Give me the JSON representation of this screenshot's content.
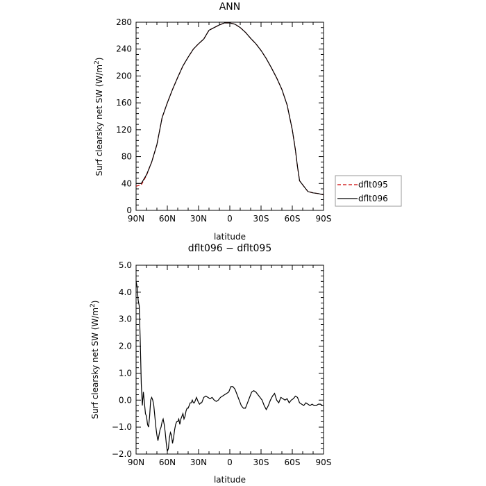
{
  "chart_data": [
    {
      "type": "line",
      "title": "ANN",
      "xlabel": "latitude",
      "ylabel_main": "Surf clearsky net SW (W/m",
      "ylabel_sup": "2",
      "ylabel_close": ")",
      "xlim": [
        90,
        -90
      ],
      "ylim": [
        0,
        280
      ],
      "xticks": [
        90,
        60,
        30,
        0,
        -30,
        -60,
        -90
      ],
      "xtick_labels": [
        "90N",
        "60N",
        "30N",
        "0",
        "30S",
        "60S",
        "90S"
      ],
      "yticks": [
        0,
        40,
        80,
        120,
        160,
        200,
        240,
        280
      ],
      "ytick_labels": [
        "0",
        "40",
        "80",
        "120",
        "160",
        "200",
        "240",
        "280"
      ],
      "x": [
        90,
        85,
        80,
        75,
        70,
        65,
        60,
        55,
        50,
        45,
        40,
        35,
        30,
        25,
        20,
        15,
        10,
        5,
        0,
        -5,
        -10,
        -15,
        -20,
        -25,
        -30,
        -35,
        -40,
        -45,
        -50,
        -55,
        -60,
        -63,
        -65,
        -67,
        -70,
        -72,
        -75,
        -80,
        -85,
        -90
      ],
      "series": [
        {
          "name": "dflt095",
          "color": "#cc0000",
          "dash": true,
          "values": [
            36,
            38,
            52,
            72,
            98,
            138,
            160,
            180,
            198,
            215,
            228,
            240,
            248,
            255,
            268,
            272,
            276,
            279,
            279,
            277,
            272,
            265,
            256,
            248,
            238,
            226,
            212,
            197,
            180,
            157,
            120,
            90,
            65,
            44,
            38,
            34,
            28,
            26,
            25,
            23
          ]
        },
        {
          "name": "dflt096",
          "color": "#000000",
          "dash": false,
          "values": [
            40,
            40,
            53,
            72,
            98,
            138,
            160,
            180,
            198,
            215,
            228,
            240,
            248,
            255,
            268,
            272,
            276,
            279,
            279,
            277,
            272,
            265,
            256,
            248,
            238,
            226,
            212,
            197,
            180,
            157,
            120,
            90,
            65,
            44,
            38,
            34,
            28,
            26,
            25,
            23
          ]
        }
      ]
    },
    {
      "type": "line",
      "title": "dflt096 − dflt095",
      "xlabel": "latitude",
      "ylabel_main": "Surf clearsky net SW (W/m",
      "ylabel_sup": "2",
      "ylabel_close": ")",
      "xlim": [
        90,
        -90
      ],
      "ylim": [
        -2,
        5
      ],
      "xticks": [
        90,
        60,
        30,
        0,
        -30,
        -60,
        -90
      ],
      "xtick_labels": [
        "90N",
        "60N",
        "30N",
        "0",
        "30S",
        "60S",
        "90S"
      ],
      "yticks": [
        -2,
        -1,
        0,
        1,
        2,
        3,
        4,
        5
      ],
      "ytick_labels": [
        "−2.0",
        "−1.0",
        "0.0",
        "1.0",
        "2.0",
        "3.0",
        "4.0",
        "5.0"
      ],
      "x": [
        90,
        89,
        88,
        87,
        86,
        85,
        84,
        83,
        82,
        81,
        80,
        79,
        78,
        77,
        76,
        75,
        74,
        73,
        72,
        71,
        70,
        69,
        68,
        67,
        66,
        65,
        64,
        63,
        62,
        61,
        60,
        59,
        58,
        57,
        56,
        55,
        54,
        53,
        52,
        51,
        50,
        49,
        48,
        47,
        46,
        45,
        44,
        43,
        42,
        41,
        40,
        39,
        38,
        37,
        36,
        35,
        34,
        33,
        32,
        31,
        30,
        29,
        28,
        27,
        26,
        25,
        23,
        21,
        19,
        17,
        15,
        13,
        11,
        9,
        7,
        5,
        3,
        1,
        0,
        -1,
        -3,
        -5,
        -7,
        -9,
        -11,
        -13,
        -15,
        -17,
        -19,
        -21,
        -23,
        -25,
        -27,
        -29,
        -31,
        -33,
        -35,
        -37,
        -39,
        -41,
        -43,
        -45,
        -47,
        -49,
        -51,
        -53,
        -55,
        -57,
        -59,
        -61,
        -63,
        -65,
        -67,
        -69,
        -71,
        -73,
        -75,
        -77,
        -79,
        -81,
        -83,
        -85,
        -87,
        -89,
        -90
      ],
      "series": [
        {
          "name": "dflt096 − dflt095",
          "color": "#000000",
          "dash": false,
          "values": [
            4.4,
            4.2,
            3.7,
            3.5,
            2.2,
            0.6,
            -0.2,
            0.3,
            -0.1,
            -0.5,
            -0.6,
            -0.9,
            -1.0,
            -0.6,
            0.0,
            0.1,
            0.0,
            -0.2,
            -0.6,
            -1.0,
            -1.3,
            -1.5,
            -1.3,
            -1.1,
            -1.0,
            -0.8,
            -0.7,
            -0.9,
            -1.2,
            -1.6,
            -1.9,
            -1.8,
            -1.4,
            -1.2,
            -1.3,
            -1.6,
            -1.4,
            -1.1,
            -0.9,
            -0.8,
            -0.8,
            -0.7,
            -0.9,
            -0.7,
            -0.6,
            -0.5,
            -0.7,
            -0.6,
            -0.4,
            -0.3,
            -0.3,
            -0.2,
            -0.1,
            -0.1,
            0.0,
            -0.1,
            -0.1,
            0.0,
            0.1,
            0.0,
            -0.1,
            -0.15,
            -0.1,
            -0.1,
            0.0,
            0.1,
            0.15,
            0.1,
            0.05,
            0.1,
            0.0,
            -0.05,
            0.0,
            0.1,
            0.15,
            0.2,
            0.25,
            0.3,
            0.4,
            0.5,
            0.5,
            0.4,
            0.2,
            0.0,
            -0.2,
            -0.3,
            -0.3,
            -0.1,
            0.1,
            0.3,
            0.35,
            0.3,
            0.2,
            0.1,
            0.0,
            -0.2,
            -0.35,
            -0.2,
            0.0,
            0.15,
            0.25,
            0.0,
            -0.1,
            0.1,
            0.05,
            0.0,
            0.05,
            -0.1,
            0.0,
            0.05,
            0.15,
            0.1,
            -0.1,
            -0.15,
            -0.2,
            -0.1,
            -0.15,
            -0.2,
            -0.15,
            -0.2,
            -0.2,
            -0.15,
            -0.15,
            -0.2,
            -0.2
          ]
        }
      ]
    }
  ]
}
